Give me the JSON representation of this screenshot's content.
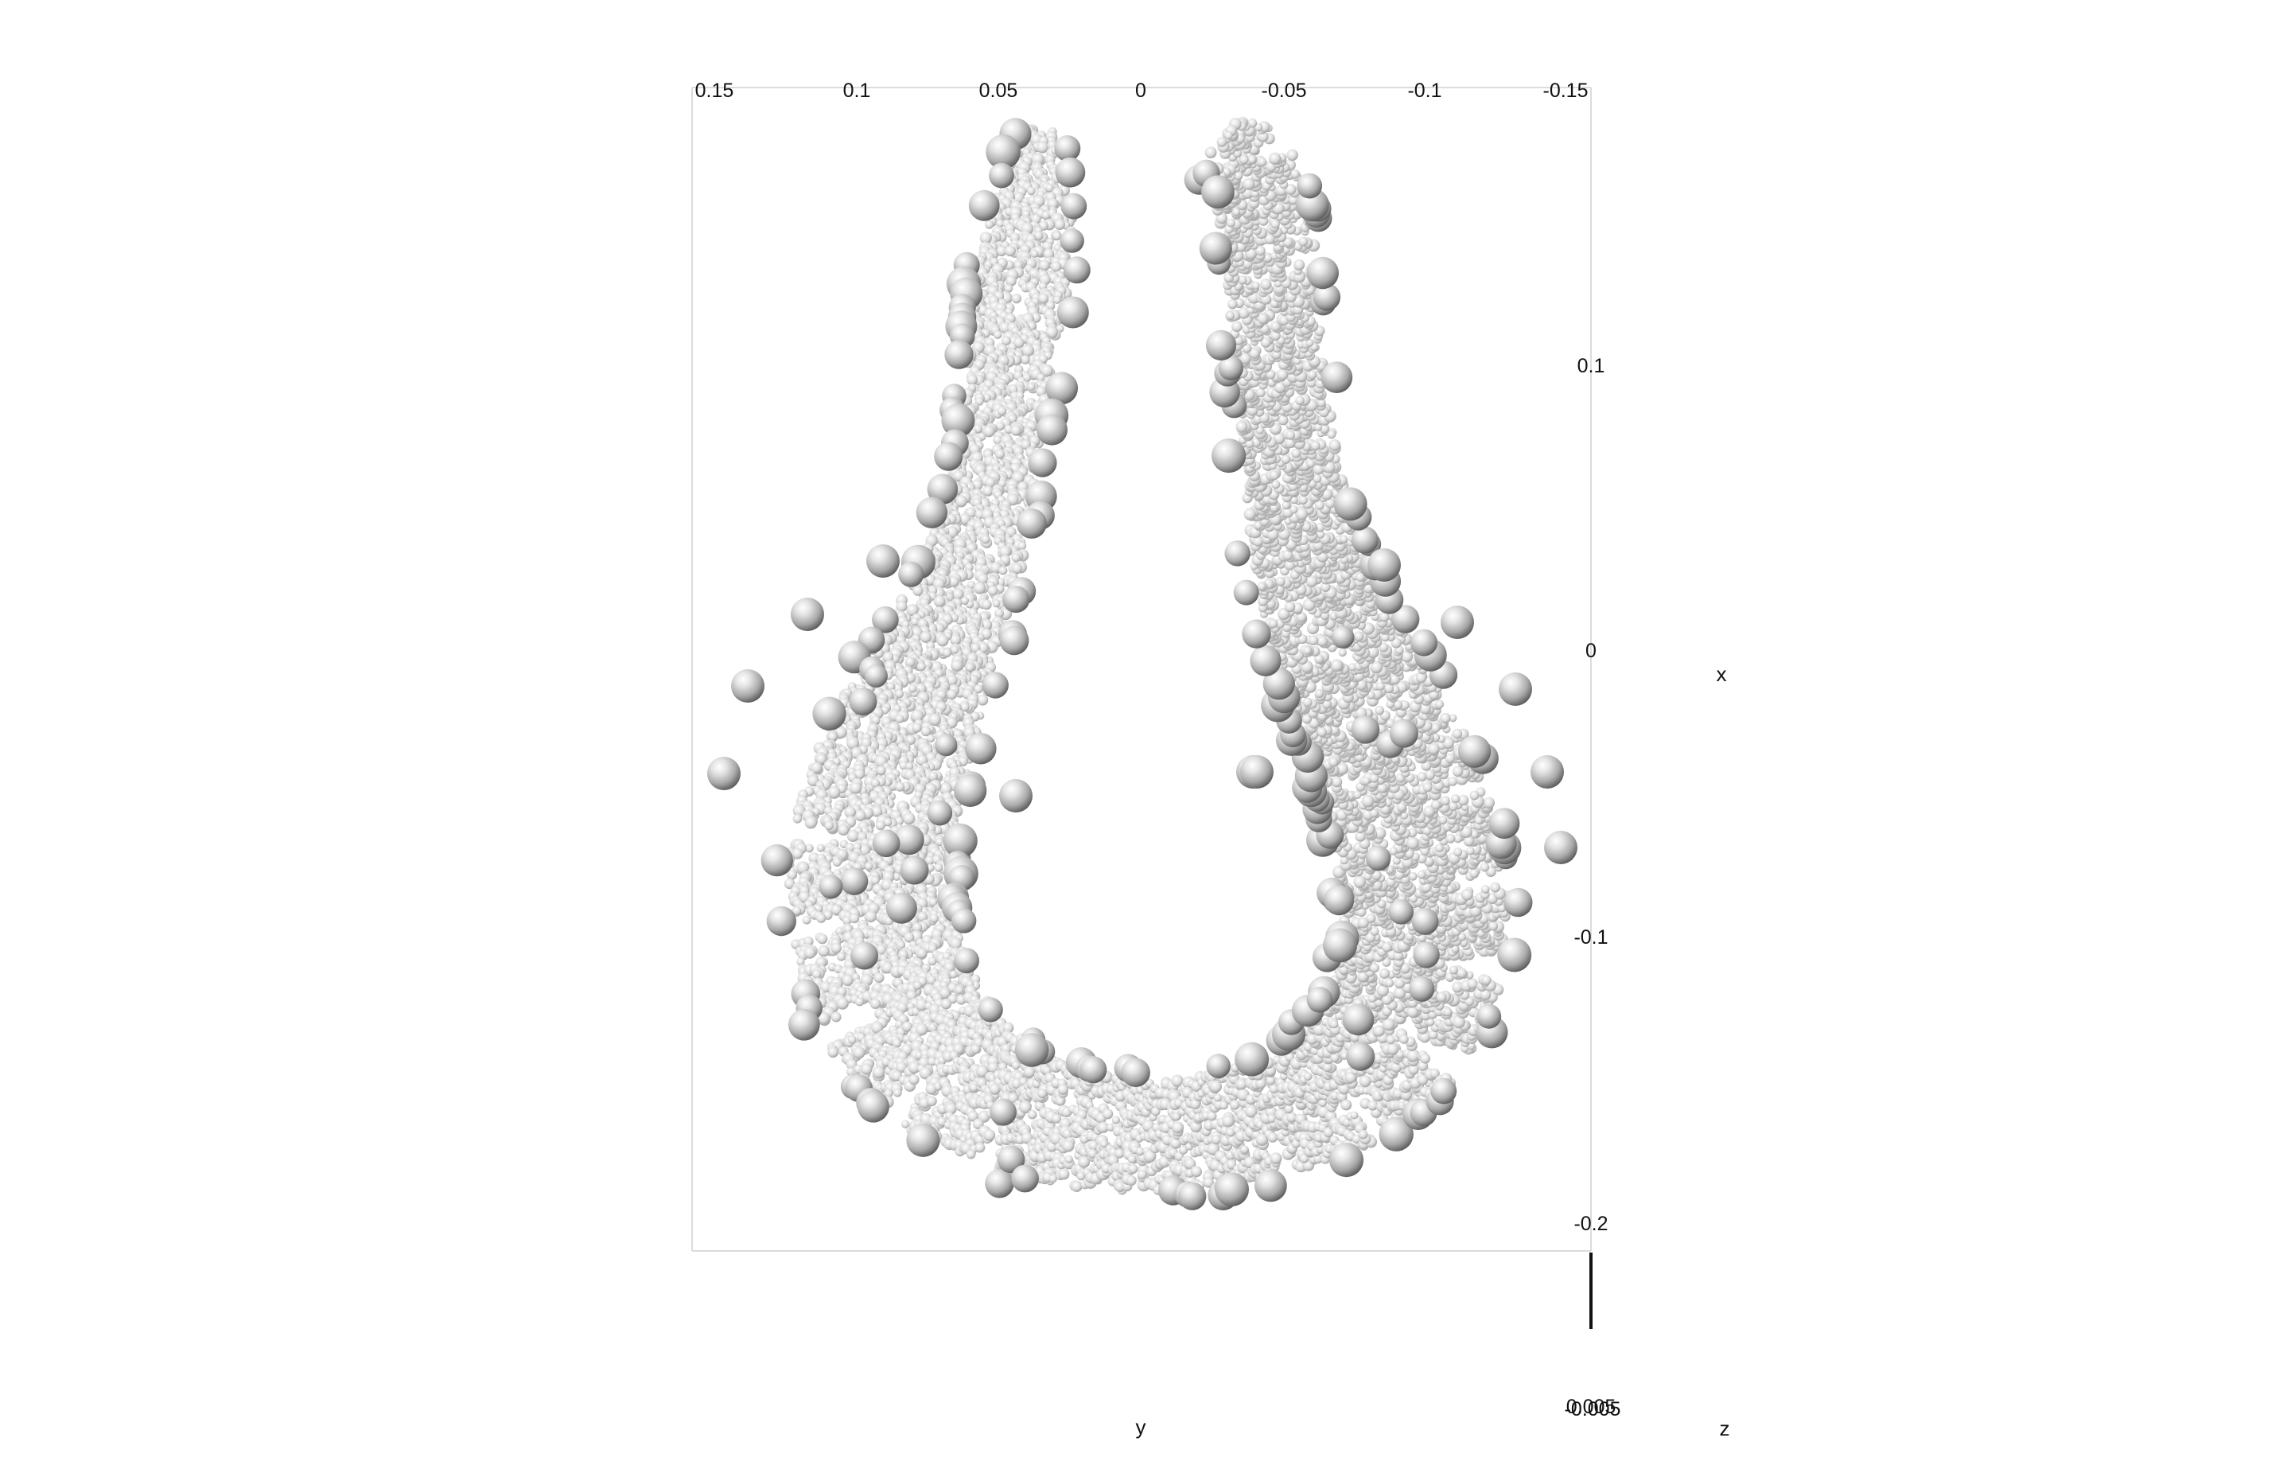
{
  "chart_data": {
    "type": "scatter",
    "title": "",
    "render_style": "3d shaded spheres",
    "sphere_color": "#b8b8b8",
    "frame_color": "#dcdcdc",
    "shape": "U-shaped band of particles (open at top)",
    "axes": {
      "y": {
        "label": "y",
        "ticks": [
          "0.15",
          "0.1",
          "0.05",
          "0",
          "-0.05",
          "-0.1",
          "-0.15"
        ],
        "range": [
          0.155,
          -0.155
        ]
      },
      "x": {
        "label": "x",
        "ticks": [
          "0.1",
          "0",
          "-0.1",
          "-0.2"
        ],
        "range": [
          0.2,
          -0.21
        ]
      },
      "z": {
        "label": "z",
        "ticks": [
          "0.005",
          "-0.005"
        ]
      }
    },
    "grid": false,
    "legend": "none"
  }
}
